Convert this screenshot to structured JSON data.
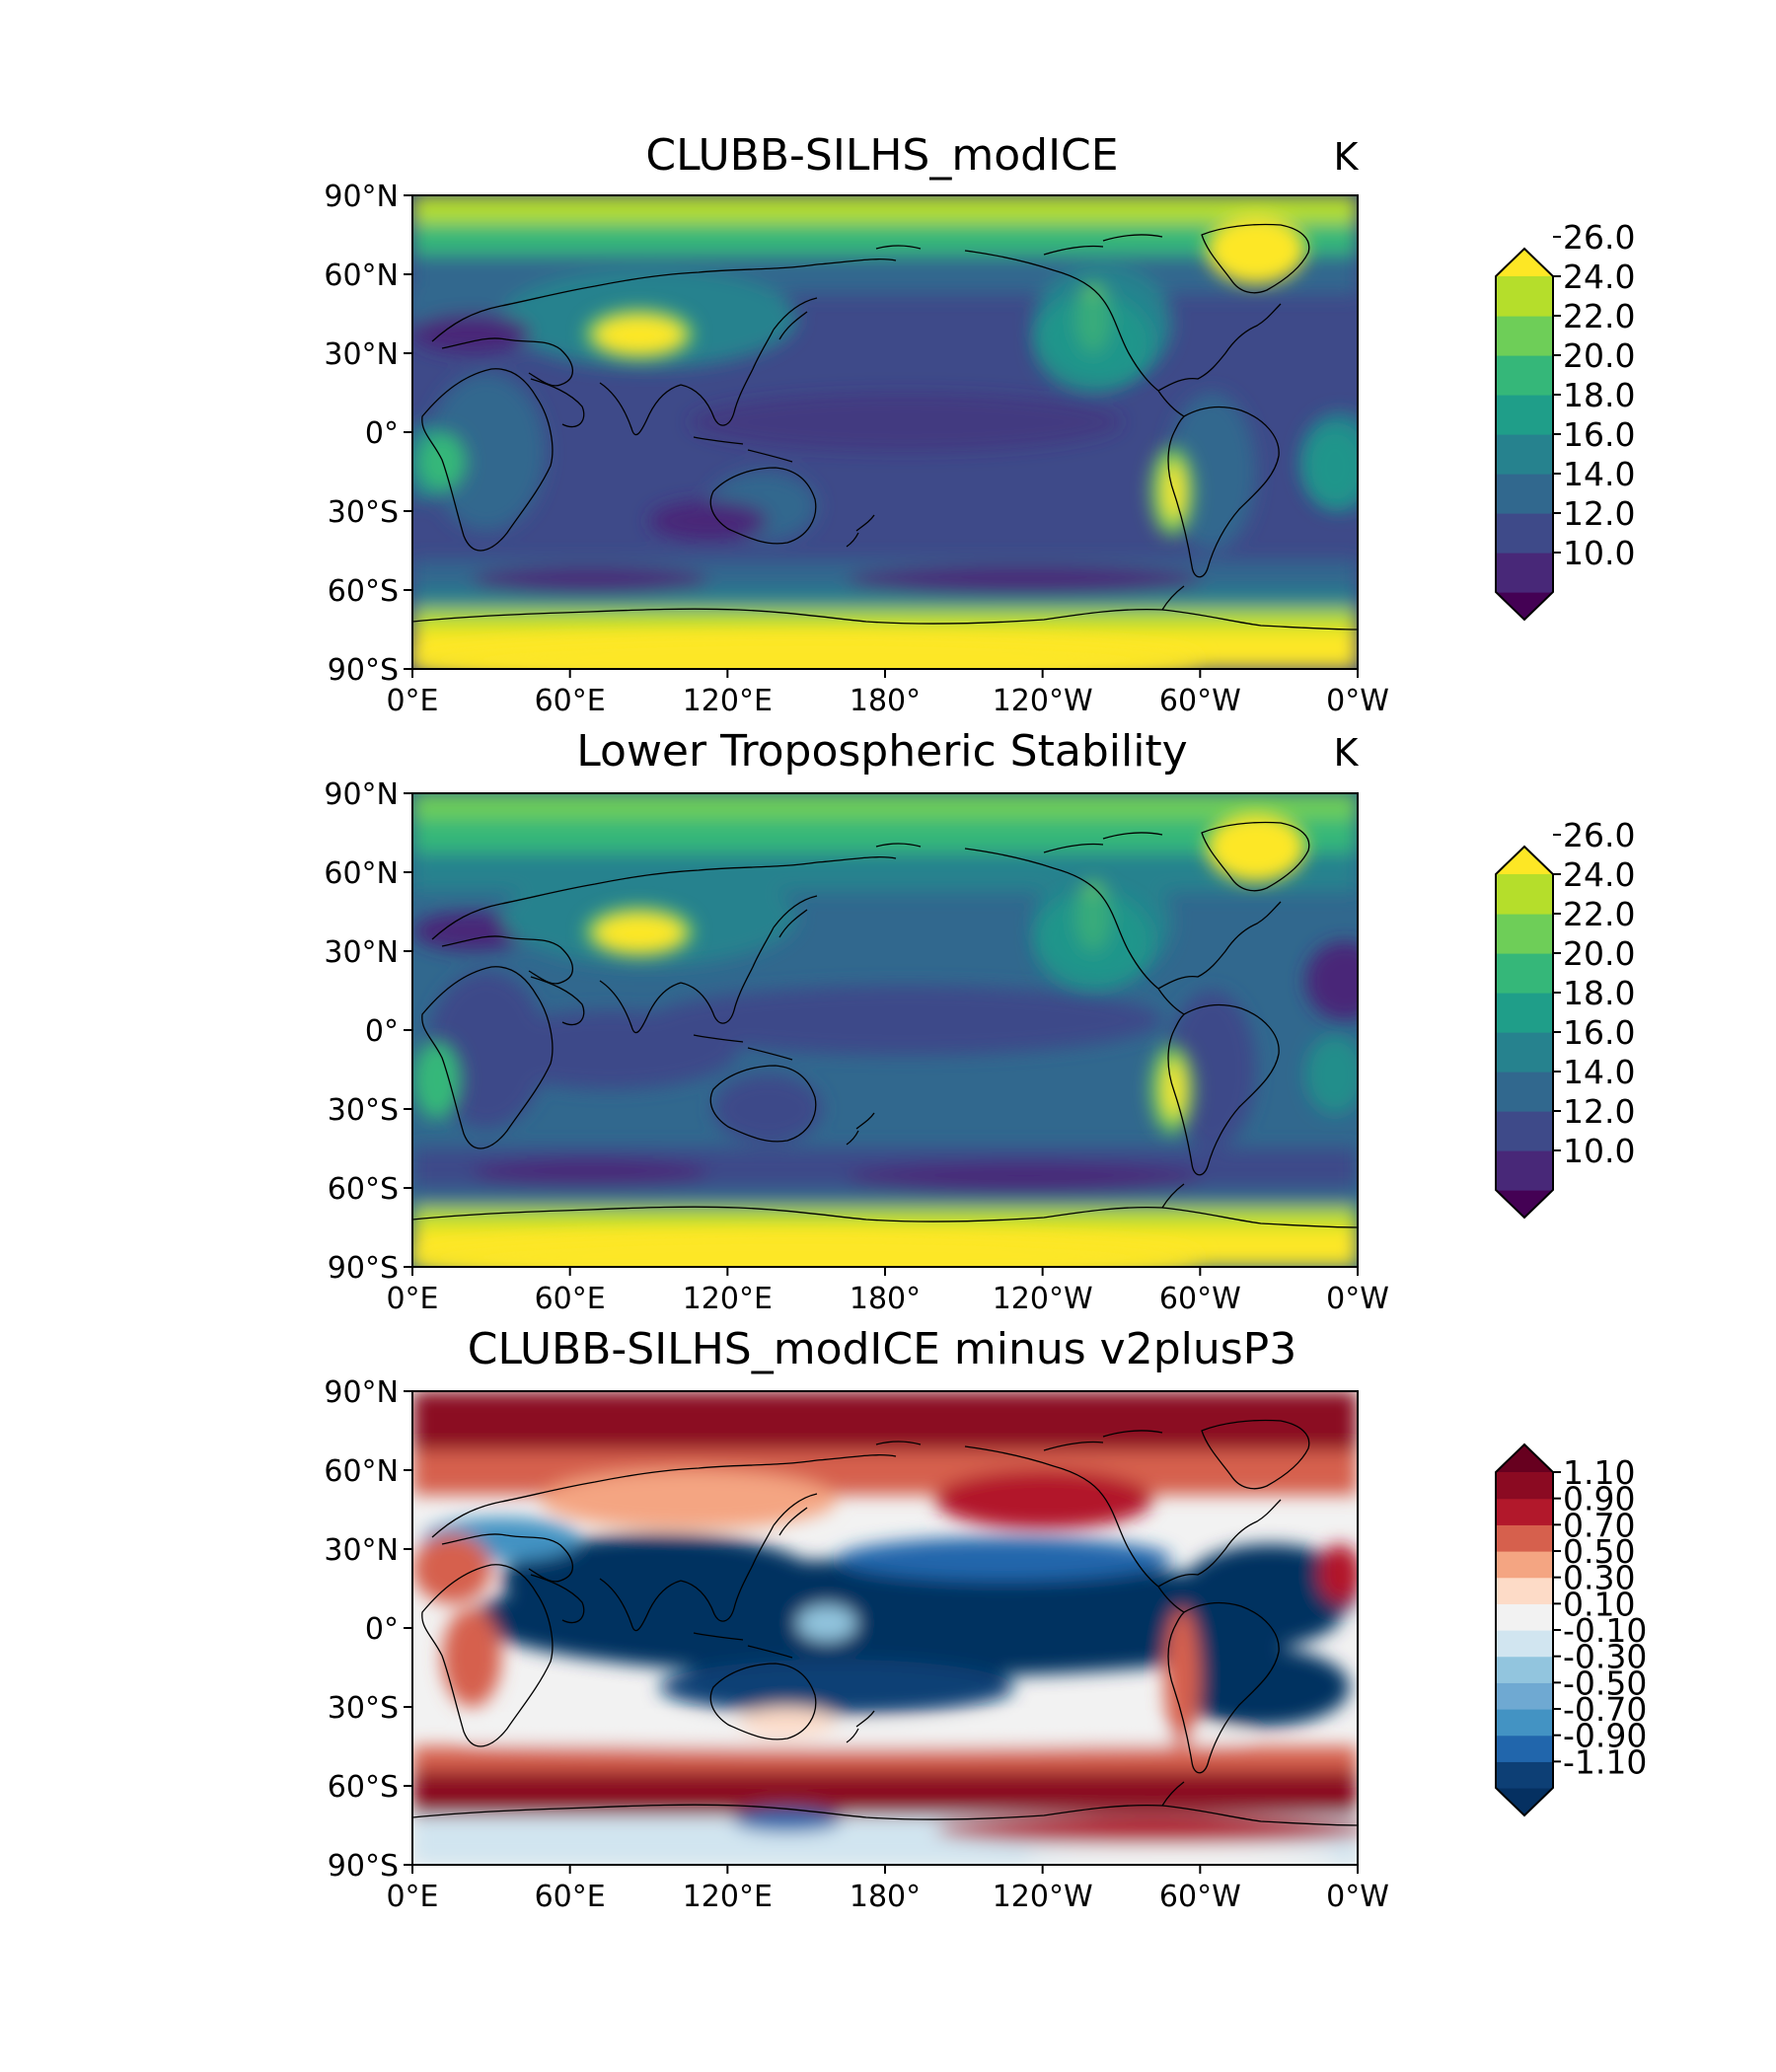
{
  "panels": [
    {
      "id": "model",
      "title": "CLUBB-SILHS_modICE",
      "units": "K",
      "colormap": "viridis",
      "cbar_ticks": [
        "10.0",
        "12.0",
        "14.0",
        "16.0",
        "18.0",
        "20.0",
        "22.0",
        "24.0",
        "26.0"
      ],
      "cbar_colors": [
        "#440154",
        "#482878",
        "#3e4a89",
        "#31688e",
        "#26828e",
        "#1f9e89",
        "#35b779",
        "#6ece58",
        "#b5de2b",
        "#fde725"
      ]
    },
    {
      "id": "obs",
      "title": "Lower Tropospheric Stability",
      "units": "K",
      "colormap": "viridis",
      "cbar_ticks": [
        "10.0",
        "12.0",
        "14.0",
        "16.0",
        "18.0",
        "20.0",
        "22.0",
        "24.0",
        "26.0"
      ],
      "cbar_colors": [
        "#440154",
        "#482878",
        "#3e4a89",
        "#31688e",
        "#26828e",
        "#1f9e89",
        "#35b779",
        "#6ece58",
        "#b5de2b",
        "#fde725"
      ]
    },
    {
      "id": "diff",
      "title": "CLUBB-SILHS_modICE minus v2plusP3",
      "units": "",
      "colormap": "RdBu_r",
      "cbar_ticks": [
        "-1.10",
        "-0.90",
        "-0.70",
        "-0.50",
        "-0.30",
        "-0.10",
        "0.10",
        "0.30",
        "0.50",
        "0.70",
        "0.90",
        "1.10"
      ],
      "cbar_colors": [
        "#053061",
        "#0d3f75",
        "#2166ac",
        "#4393c3",
        "#6fa9d2",
        "#92c5de",
        "#d1e5f0",
        "#f2f2f2",
        "#fddbc7",
        "#f4a582",
        "#d6604d",
        "#b2182b",
        "#8b0a22",
        "#67001f"
      ]
    }
  ],
  "axes": {
    "lon_ticks": [
      "0°E",
      "60°E",
      "120°E",
      "180°",
      "120°W",
      "60°W",
      "0°W"
    ],
    "lat_ticks": [
      "90°N",
      "60°N",
      "30°N",
      "0°",
      "30°S",
      "60°S",
      "90°S"
    ]
  }
}
